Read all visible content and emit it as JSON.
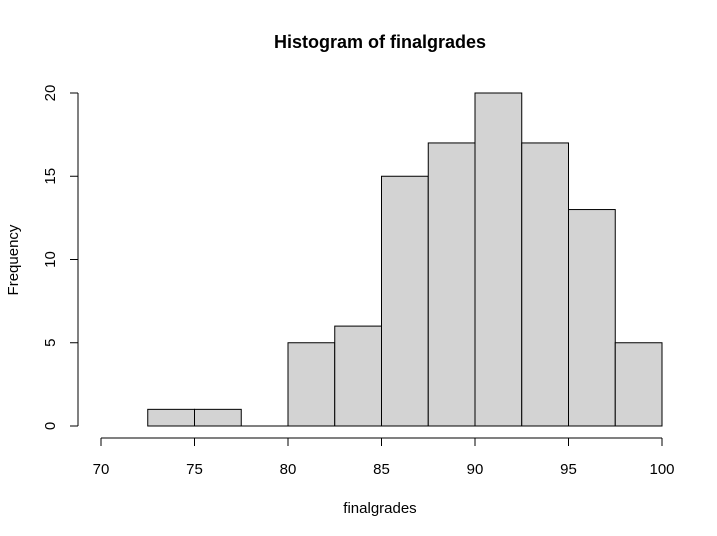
{
  "chart_data": {
    "type": "bar",
    "title": "Histogram of finalgrades",
    "xlabel": "finalgrades",
    "ylabel": "Frequency",
    "bins": [
      {
        "start": 72.5,
        "end": 75.0,
        "count": 1
      },
      {
        "start": 75.0,
        "end": 77.5,
        "count": 1
      },
      {
        "start": 77.5,
        "end": 80.0,
        "count": 0
      },
      {
        "start": 80.0,
        "end": 82.5,
        "count": 5
      },
      {
        "start": 82.5,
        "end": 85.0,
        "count": 6
      },
      {
        "start": 85.0,
        "end": 87.5,
        "count": 15
      },
      {
        "start": 87.5,
        "end": 90.0,
        "count": 17
      },
      {
        "start": 90.0,
        "end": 92.5,
        "count": 20
      },
      {
        "start": 92.5,
        "end": 95.0,
        "count": 17
      },
      {
        "start": 95.0,
        "end": 97.5,
        "count": 13
      },
      {
        "start": 97.5,
        "end": 100.0,
        "count": 5
      }
    ],
    "xlim": [
      70,
      100
    ],
    "ylim": [
      0,
      20
    ],
    "x_ticks": [
      70,
      75,
      80,
      85,
      90,
      95,
      100
    ],
    "y_ticks": [
      0,
      5,
      10,
      15,
      20
    ],
    "bar_fill": "#d3d3d3",
    "bar_stroke": "#000000",
    "grid": false
  }
}
